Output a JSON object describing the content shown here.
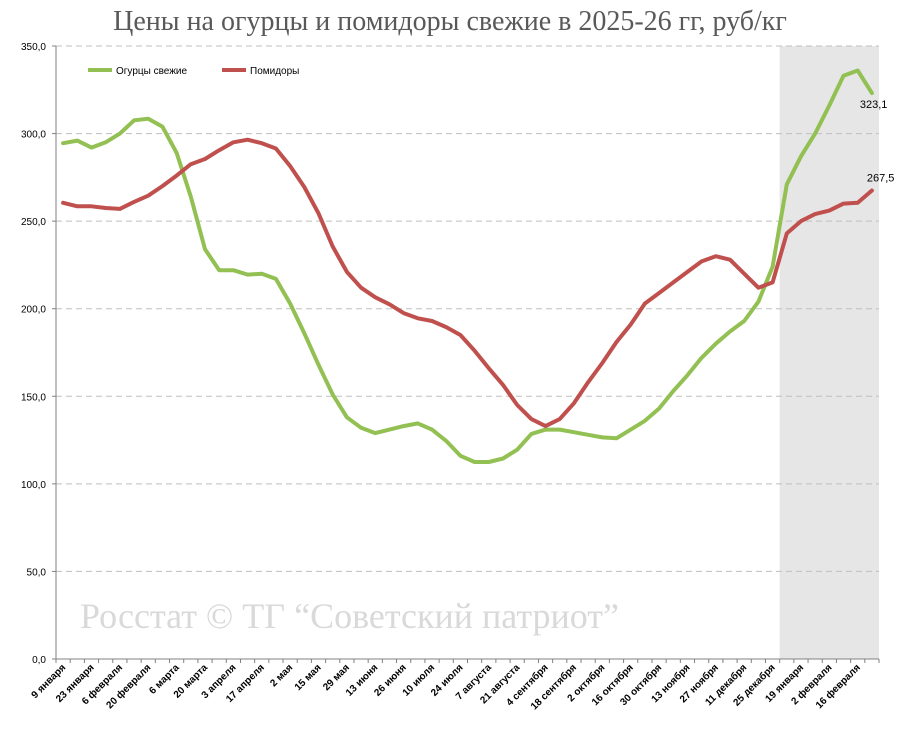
{
  "chart_data": {
    "type": "line",
    "title": "Цены на огурцы и помидоры свежие в 2025-26 гг, руб/кг",
    "watermark": "Росстат © ТГ “Советский патриот”",
    "ylim": [
      0,
      350
    ],
    "y_ticks": [
      "0,0",
      "50,0",
      "100,0",
      "150,0",
      "200,0",
      "250,0",
      "300,0",
      "350,0"
    ],
    "grid": "horizontal-dashed",
    "legend_position": "top-left",
    "shaded_region": {
      "from_index": 51,
      "to_index": 57,
      "color": "#e6e6e6"
    },
    "x_tick_labels": [
      "9 января",
      "23 января",
      "6 февраля",
      "20 февраля",
      "6 марта",
      "20 марта",
      "3 апреля",
      "17 апреля",
      "2 мая",
      "15 мая",
      "29 мая",
      "13 июня",
      "26 июня",
      "10 июля",
      "24 июля",
      "7 августа",
      "21 августа",
      "4 сентября",
      "18 сентября",
      "2 октября",
      "16 октября",
      "30 октября",
      "13 ноября",
      "27 ноября",
      "11 декабря",
      "25 декабря",
      "19 января",
      "2 февраля",
      "16 февраля"
    ],
    "series": [
      {
        "name": "Огурцы свежие",
        "color": "#92c052",
        "values": [
          294.5,
          296,
          292,
          295,
          300,
          307.5,
          308.5,
          304,
          289,
          264,
          234,
          222,
          222,
          219.5,
          220,
          217,
          203,
          186,
          168,
          151,
          138,
          132,
          129,
          131,
          133,
          134.5,
          131,
          124.5,
          116,
          112.5,
          112.5,
          114.5,
          119.5,
          128.5,
          131,
          131,
          129.5,
          128,
          126.5,
          126,
          131,
          136,
          143,
          153,
          162,
          172,
          180,
          187,
          193,
          204,
          224,
          271,
          287,
          300,
          316,
          333,
          336,
          323.1
        ],
        "end_label": "323,1"
      },
      {
        "name": "Помидоры",
        "color": "#c0504d",
        "values": [
          260.5,
          258.5,
          258.5,
          257.5,
          257,
          261,
          264.5,
          270,
          276,
          282.5,
          285.5,
          290.5,
          295,
          296.5,
          294.5,
          291.5,
          281.5,
          269.5,
          254.5,
          235.5,
          221,
          212,
          206.5,
          202.5,
          197.5,
          194.5,
          193,
          189.5,
          185,
          176,
          166,
          156.5,
          145,
          137,
          133,
          137,
          146,
          158,
          169,
          181,
          191,
          203,
          209,
          215,
          221,
          227,
          230,
          228,
          220,
          212,
          215,
          243,
          250,
          254,
          256,
          260,
          260.5,
          267.5
        ],
        "end_label": "267,5"
      }
    ]
  }
}
